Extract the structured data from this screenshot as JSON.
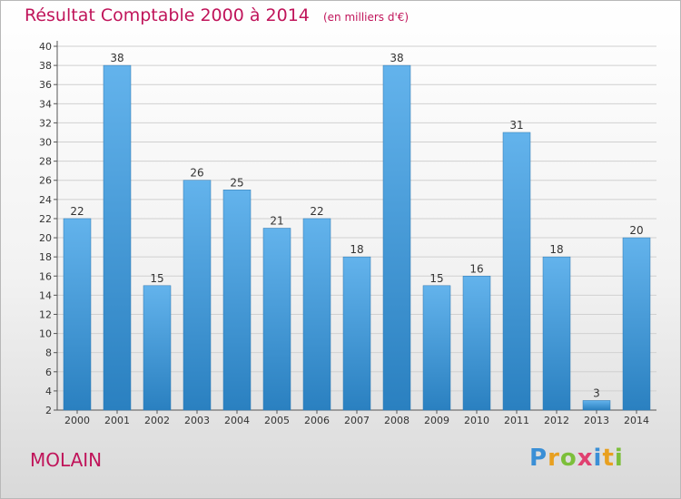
{
  "title": "Résultat Comptable 2000 à 2014",
  "unit": "(en milliers d'€)",
  "commune": "MOLAIN",
  "logo": {
    "letters": [
      "P",
      "r",
      "o",
      "x",
      "i",
      "t",
      "i"
    ],
    "colors": [
      "#3a8fd6",
      "#e8a020",
      "#7cbf3a",
      "#e04070",
      "#3a8fd6",
      "#e8a020",
      "#7cbf3a"
    ]
  },
  "colors": {
    "bar_light": "#63b3ec",
    "bar_dark": "#2a80c0",
    "title": "#c0145a",
    "grid": "#d0d0d0"
  },
  "chart_data": {
    "type": "bar",
    "categories": [
      "2000",
      "2001",
      "2002",
      "2003",
      "2004",
      "2005",
      "2006",
      "2007",
      "2008",
      "2009",
      "2010",
      "2011",
      "2012",
      "2013",
      "2014"
    ],
    "values": [
      22,
      38,
      15,
      26,
      25,
      21,
      22,
      18,
      38,
      15,
      16,
      31,
      18,
      3,
      20
    ],
    "ylim": [
      2,
      40
    ],
    "yticks": [
      2,
      4,
      6,
      8,
      10,
      12,
      14,
      16,
      18,
      20,
      22,
      24,
      26,
      28,
      30,
      32,
      34,
      36,
      38,
      40
    ],
    "grid": true
  }
}
